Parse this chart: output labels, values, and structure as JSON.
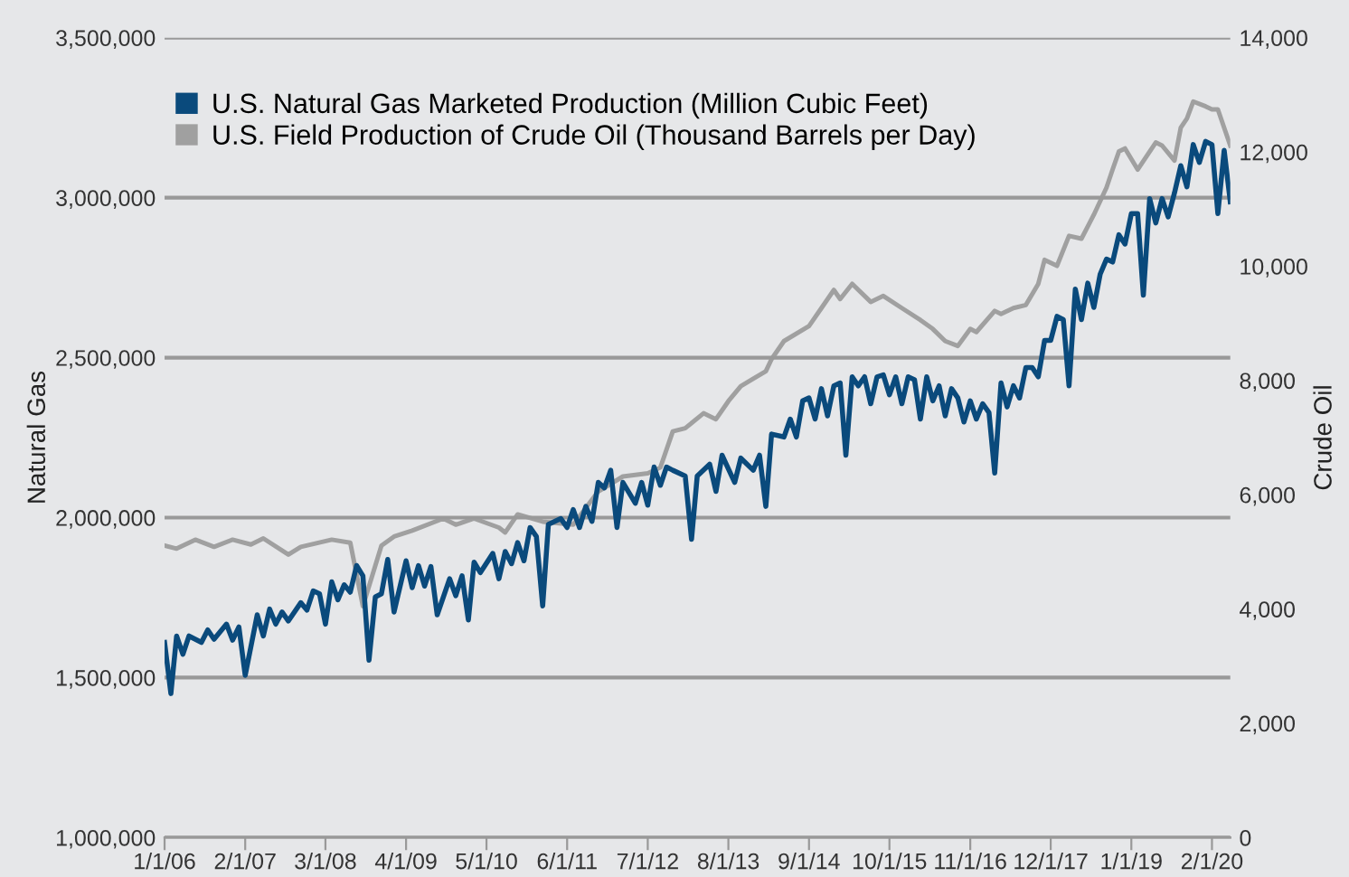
{
  "chart_data": {
    "type": "line",
    "xlabel": null,
    "ylabel": "Natural Gas",
    "y2label": "Crude Oil",
    "legend": "top left",
    "grid": "y",
    "line_style": "solid",
    "marker": "none",
    "xlim": [
      "2006-01-01",
      "2020-05-01"
    ],
    "xticks": [
      {
        "value": "2006-01-01",
        "label": "1/1/06"
      },
      {
        "value": "2007-02-01",
        "label": "2/1/07"
      },
      {
        "value": "2008-03-01",
        "label": "3/1/08"
      },
      {
        "value": "2009-04-01",
        "label": "4/1/09"
      },
      {
        "value": "2010-05-01",
        "label": "5/1/10"
      },
      {
        "value": "2011-06-01",
        "label": "6/1/11"
      },
      {
        "value": "2012-07-01",
        "label": "7/1/12"
      },
      {
        "value": "2013-08-01",
        "label": "8/1/13"
      },
      {
        "value": "2014-09-01",
        "label": "9/1/14"
      },
      {
        "value": "2015-10-01",
        "label": "10/1/15"
      },
      {
        "value": "2016-11-01",
        "label": "11/1/16"
      },
      {
        "value": "2017-12-01",
        "label": "12/1/17"
      },
      {
        "value": "2019-01-01",
        "label": "1/1/19"
      },
      {
        "value": "2020-02-01",
        "label": "2/1/20"
      }
    ],
    "ylim": [
      1000000,
      3500000
    ],
    "yticks": [
      {
        "value": 1000000,
        "label": "1,000,000"
      },
      {
        "value": 1500000,
        "label": "1,500,000"
      },
      {
        "value": 2000000,
        "label": "2,000,000"
      },
      {
        "value": 2500000,
        "label": "2,500,000"
      },
      {
        "value": 3000000,
        "label": "3,000,000"
      },
      {
        "value": 3500000,
        "label": "3,500,000"
      }
    ],
    "y2lim": [
      0,
      14000
    ],
    "y2ticks": [
      0,
      {
        "value": 2000,
        "label": "2,000"
      },
      {
        "value": 4000,
        "label": "4,000"
      },
      {
        "value": 6000,
        "label": "6,000"
      },
      {
        "value": 8000,
        "label": "8,000"
      },
      {
        "value": 10000,
        "label": "10,000"
      },
      {
        "value": 12000,
        "label": "12,000"
      },
      {
        "value": 14000,
        "label": "14,000"
      }
    ],
    "series": [
      {
        "name": "U.S. Natural Gas Marketed Production (Million Cubic Feet)",
        "color": "#0a4a7c",
        "axis": "y",
        "x": [
          "2006-01",
          "2006-02",
          "2006-03",
          "2006-04",
          "2006-05",
          "2006-07",
          "2006-08",
          "2006-09",
          "2006-11",
          "2006-12",
          "2007-01",
          "2007-02",
          "2007-04",
          "2007-05",
          "2007-06",
          "2007-07",
          "2007-08",
          "2007-09",
          "2007-11",
          "2007-12",
          "2008-01",
          "2008-02",
          "2008-03",
          "2008-04",
          "2008-05",
          "2008-06",
          "2008-07",
          "2008-08",
          "2008-09",
          "2008-10",
          "2008-11",
          "2008-12",
          "2009-01",
          "2009-02",
          "2009-04",
          "2009-05",
          "2009-06",
          "2009-07",
          "2009-08",
          "2009-09",
          "2009-11",
          "2009-12",
          "2010-01",
          "2010-02",
          "2010-03",
          "2010-04",
          "2010-06",
          "2010-07",
          "2010-08",
          "2010-09",
          "2010-10",
          "2010-11",
          "2010-12",
          "2011-01",
          "2011-02",
          "2011-03",
          "2011-05",
          "2011-06",
          "2011-07",
          "2011-08",
          "2011-09",
          "2011-10",
          "2011-11",
          "2011-12",
          "2012-01",
          "2012-02",
          "2012-03",
          "2012-05",
          "2012-06",
          "2012-07",
          "2012-08",
          "2012-09",
          "2012-10",
          "2012-11",
          "2013-01",
          "2013-02",
          "2013-03",
          "2013-05",
          "2013-06",
          "2013-07",
          "2013-09",
          "2013-10",
          "2013-12",
          "2014-01",
          "2014-02",
          "2014-03",
          "2014-05",
          "2014-06",
          "2014-07",
          "2014-08",
          "2014-09",
          "2014-10",
          "2014-11",
          "2014-12",
          "2015-01",
          "2015-02",
          "2015-03",
          "2015-04",
          "2015-05",
          "2015-06",
          "2015-07",
          "2015-08",
          "2015-09",
          "2015-10",
          "2015-11",
          "2015-12",
          "2016-01",
          "2016-02",
          "2016-03",
          "2016-04",
          "2016-05",
          "2016-06",
          "2016-07",
          "2016-08",
          "2016-09",
          "2016-10",
          "2016-11",
          "2016-12",
          "2017-01",
          "2017-02",
          "2017-03",
          "2017-04",
          "2017-05",
          "2017-06",
          "2017-07",
          "2017-08",
          "2017-09",
          "2017-10",
          "2017-11",
          "2017-12",
          "2018-01",
          "2018-02",
          "2018-03",
          "2018-04",
          "2018-05",
          "2018-06",
          "2018-07",
          "2018-08",
          "2018-09",
          "2018-10",
          "2018-11",
          "2018-12",
          "2019-01",
          "2019-02",
          "2019-03",
          "2019-04",
          "2019-05",
          "2019-06",
          "2019-07",
          "2019-08",
          "2019-09",
          "2019-10",
          "2019-11",
          "2019-12",
          "2020-01",
          "2020-02",
          "2020-03",
          "2020-04",
          "2020-05"
        ],
        "values": [
          1610000,
          1450000,
          1630000,
          1573000,
          1630000,
          1610000,
          1649000,
          1620000,
          1667000,
          1617000,
          1658000,
          1507000,
          1696000,
          1630000,
          1714000,
          1667000,
          1705000,
          1677000,
          1734000,
          1711000,
          1771000,
          1762000,
          1667000,
          1799000,
          1743000,
          1790000,
          1767000,
          1850000,
          1818000,
          1554000,
          1752000,
          1762000,
          1869000,
          1705000,
          1865000,
          1781000,
          1850000,
          1786000,
          1847000,
          1696000,
          1809000,
          1756000,
          1818000,
          1680000,
          1861000,
          1828000,
          1888000,
          1809000,
          1894000,
          1856000,
          1922000,
          1865000,
          1969000,
          1941000,
          1724000,
          1979000,
          1997000,
          1969000,
          2025000,
          1969000,
          2035000,
          1988000,
          2110000,
          2093000,
          2148000,
          1969000,
          2110000,
          2045000,
          2110000,
          2039000,
          2158000,
          2101000,
          2158000,
          2148000,
          2130000,
          1932000,
          2130000,
          2167000,
          2082000,
          2195000,
          2110000,
          2186000,
          2148000,
          2195000,
          2035000,
          2261000,
          2252000,
          2308000,
          2252000,
          2365000,
          2374000,
          2308000,
          2403000,
          2318000,
          2412000,
          2421000,
          2195000,
          2440000,
          2412000,
          2440000,
          2356000,
          2440000,
          2446000,
          2384000,
          2440000,
          2356000,
          2440000,
          2431000,
          2308000,
          2440000,
          2365000,
          2412000,
          2318000,
          2403000,
          2374000,
          2299000,
          2365000,
          2308000,
          2356000,
          2328000,
          2139000,
          2421000,
          2346000,
          2412000,
          2374000,
          2469000,
          2469000,
          2440000,
          2554000,
          2554000,
          2629000,
          2619000,
          2412000,
          2714000,
          2619000,
          2733000,
          2657000,
          2761000,
          2808000,
          2799000,
          2884000,
          2855000,
          2950000,
          2950000,
          2695000,
          2997000,
          2921000,
          2997000,
          2940000,
          3015000,
          3100000,
          3034000,
          3166000,
          3110000,
          3176000,
          3166000,
          2950000,
          3148000,
          2987000
        ]
      },
      {
        "name": "U.S. Field Production of Crude Oil (Thousand Barrels per Day)",
        "color": "#a0a0a0",
        "axis": "y2",
        "x": [
          "2006-01",
          "2006-03",
          "2006-06",
          "2006-09",
          "2006-12",
          "2007-03",
          "2007-05",
          "2007-09",
          "2007-11",
          "2008-04",
          "2008-07",
          "2008-09",
          "2008-12",
          "2009-02",
          "2009-05",
          "2009-10",
          "2009-12",
          "2010-03",
          "2010-07",
          "2010-08",
          "2010-10",
          "2011-02",
          "2011-07",
          "2011-11",
          "2012-03",
          "2012-07",
          "2012-09",
          "2012-11",
          "2013-01",
          "2013-04",
          "2013-06",
          "2013-08",
          "2013-10",
          "2013-12",
          "2014-02",
          "2014-03",
          "2014-05",
          "2014-09",
          "2014-11",
          "2015-01",
          "2015-02",
          "2015-04",
          "2015-07",
          "2015-09",
          "2015-12",
          "2016-03",
          "2016-05",
          "2016-07",
          "2016-09",
          "2016-11",
          "2016-12",
          "2017-03",
          "2017-04",
          "2017-06",
          "2017-08",
          "2017-10",
          "2017-11",
          "2018-01",
          "2018-03",
          "2018-05",
          "2018-07",
          "2018-09",
          "2018-10",
          "2018-11",
          "2018-12",
          "2019-02",
          "2019-05",
          "2019-06",
          "2019-08",
          "2019-09",
          "2019-10",
          "2019-11",
          "2020-01",
          "2020-02",
          "2020-03",
          "2020-05"
        ],
        "values": [
          5110,
          5056,
          5214,
          5088,
          5214,
          5129,
          5236,
          4952,
          5088,
          5214,
          5160,
          4050,
          5110,
          5268,
          5372,
          5584,
          5476,
          5584,
          5426,
          5340,
          5656,
          5530,
          5476,
          6058,
          6320,
          6374,
          6478,
          7110,
          7164,
          7426,
          7322,
          7638,
          7900,
          8030,
          8162,
          8374,
          8690,
          8952,
          9268,
          9584,
          9426,
          9692,
          9376,
          9480,
          9268,
          9059,
          8902,
          8690,
          8605,
          8902,
          8848,
          9218,
          9164,
          9268,
          9322,
          9692,
          10112,
          10007,
          10532,
          10482,
          10902,
          11376,
          11692,
          12008,
          12062,
          11692,
          12166,
          12112,
          11850,
          12428,
          12586,
          12883,
          12798,
          12745,
          12745,
          12112
        ]
      }
    ]
  }
}
